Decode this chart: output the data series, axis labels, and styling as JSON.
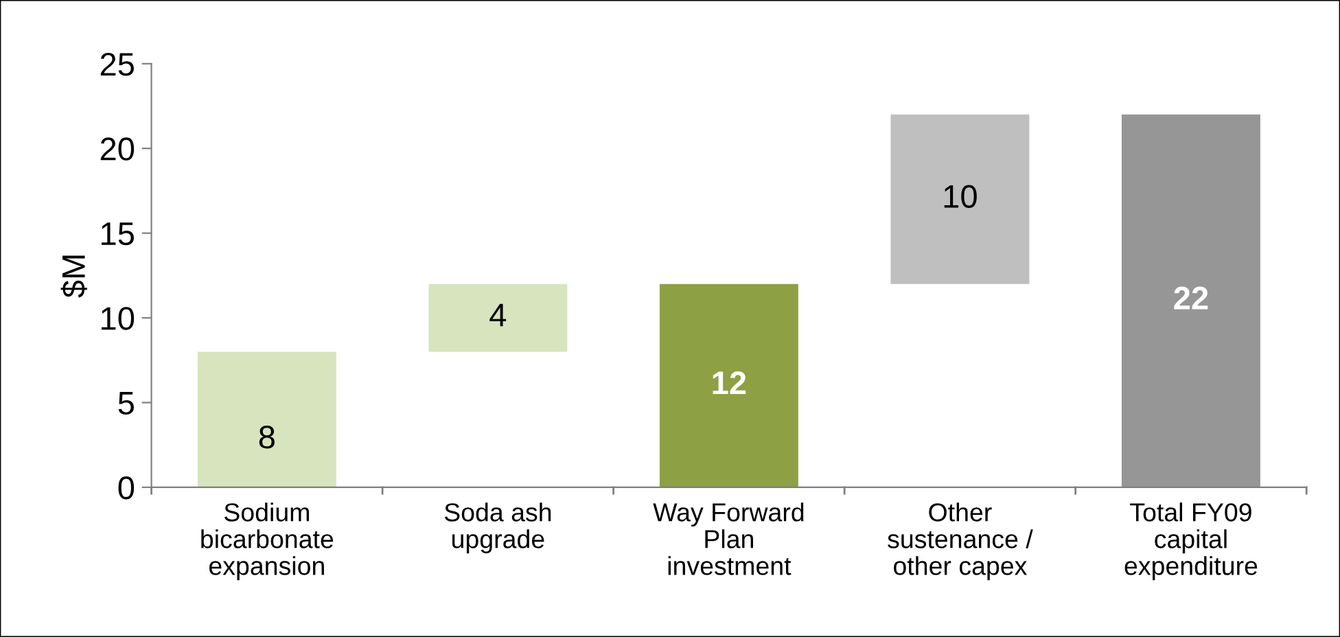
{
  "chart_data": {
    "type": "bar",
    "ylabel": "$M",
    "categories": [
      "Sodium\nbicarbonate\nexpansion",
      "Soda ash\nupgrade",
      "Way Forward\nPlan\ninvestment",
      "Other\nsustenance /\nother capex",
      "Total FY09\ncapital\nexpenditure"
    ],
    "values": [
      8,
      4,
      12,
      10,
      22
    ],
    "base": [
      0,
      8,
      0,
      12,
      0
    ],
    "colors": [
      "#d7e4bd",
      "#d7e4bd",
      "#8ea044",
      "#bfbfbf",
      "#969696"
    ],
    "ylim": [
      0,
      25
    ],
    "yticks": [
      0,
      5,
      10,
      15,
      20,
      25
    ],
    "data_labels": true,
    "grid": false,
    "legend": false
  }
}
